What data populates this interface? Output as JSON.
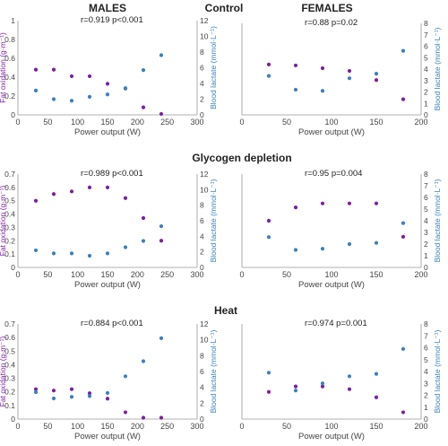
{
  "headings": {
    "males": "MALES",
    "females": "FEMALES",
    "control": "Control",
    "glycogen": "Glycogen depletion",
    "heat": "Heat"
  },
  "colors": {
    "fat": "#7b1fa2",
    "lactate": "#3a7fc1"
  },
  "chart_data": [
    {
      "id": "control-males",
      "type": "scatter",
      "annotation": "r=0.919 p<0.001",
      "xlabel": "Power output (W)",
      "ylabel_left": "Fat oxidation (g·m⁻¹)",
      "ylabel_right": "Blood lactate (mmol·L⁻¹)",
      "xlim": [
        0,
        300
      ],
      "xticks": [
        0,
        50,
        100,
        150,
        200,
        250,
        300
      ],
      "ylim_left": [
        0,
        1.0
      ],
      "yticks_left": [
        0,
        0.2,
        0.4,
        0.6,
        0.8,
        1.0
      ],
      "ylim_right": [
        0,
        12
      ],
      "yticks_right": [
        0,
        2,
        4,
        6,
        8,
        10,
        12
      ],
      "series": [
        {
          "axis": "left",
          "color": "fat",
          "x": [
            30,
            60,
            90,
            120,
            150,
            180,
            210,
            240
          ],
          "y": [
            0.48,
            0.48,
            0.41,
            0.41,
            0.33,
            0.28,
            0.08,
            0.01
          ]
        },
        {
          "axis": "right",
          "color": "lactate",
          "x": [
            30,
            60,
            90,
            120,
            150,
            180,
            210,
            240
          ],
          "y": [
            3.1,
            2.0,
            1.8,
            2.3,
            2.6,
            3.4,
            5.7,
            7.6
          ]
        }
      ]
    },
    {
      "id": "control-females",
      "type": "scatter",
      "annotation": "r=0.88 p=0.02",
      "xlabel": "Power output (W)",
      "ylabel_left": "",
      "ylabel_right": "Blood lactate (mmol·L⁻¹)",
      "xlim": [
        0,
        200
      ],
      "xticks": [
        0,
        50,
        100,
        150,
        200
      ],
      "ylim_left": [
        0,
        1.0
      ],
      "yticks_left": [],
      "ylim_right": [
        0,
        8
      ],
      "yticks_right": [
        0,
        1,
        2,
        3,
        4,
        5,
        6,
        7,
        8
      ],
      "series": [
        {
          "axis": "left",
          "color": "fat",
          "x": [
            30,
            60,
            90,
            120,
            150,
            180
          ],
          "y": [
            0.55,
            0.54,
            0.51,
            0.48,
            0.38,
            0.17
          ]
        },
        {
          "axis": "right",
          "color": "lactate",
          "x": [
            30,
            60,
            90,
            120,
            150,
            180
          ],
          "y": [
            3.4,
            2.2,
            2.1,
            3.2,
            3.6,
            5.6
          ]
        }
      ]
    },
    {
      "id": "glycogen-males",
      "type": "scatter",
      "annotation": "r=0.989 p<0.001",
      "xlabel": "Power output (W)",
      "ylabel_left": "Fat oxidation (g·m⁻¹)",
      "ylabel_right": "Blood lactate (mmol·L⁻¹)",
      "xlim": [
        0,
        300
      ],
      "xticks": [
        0,
        50,
        100,
        150,
        200,
        250,
        300
      ],
      "ylim_left": [
        0,
        0.7
      ],
      "yticks_left": [
        0,
        0.1,
        0.2,
        0.3,
        0.4,
        0.5,
        0.6,
        0.7
      ],
      "ylim_right": [
        0,
        12
      ],
      "yticks_right": [
        0,
        2,
        4,
        6,
        8,
        10,
        12
      ],
      "series": [
        {
          "axis": "left",
          "color": "fat",
          "x": [
            30,
            60,
            90,
            120,
            150,
            180,
            210,
            240
          ],
          "y": [
            0.5,
            0.55,
            0.57,
            0.6,
            0.6,
            0.52,
            0.37,
            0.2
          ]
        },
        {
          "axis": "right",
          "color": "lactate",
          "x": [
            30,
            60,
            90,
            120,
            150,
            180,
            210,
            240
          ],
          "y": [
            2.2,
            1.8,
            1.8,
            1.5,
            1.8,
            2.6,
            3.4,
            5.3
          ]
        }
      ]
    },
    {
      "id": "glycogen-females",
      "type": "scatter",
      "annotation": "r=0.95 p=0.004",
      "xlabel": "Power output (W)",
      "ylabel_left": "",
      "ylabel_right": "Blood lactate (mmol·L⁻¹)",
      "xlim": [
        0,
        200
      ],
      "xticks": [
        0,
        50,
        100,
        150,
        200
      ],
      "ylim_left": [
        0,
        0.7
      ],
      "yticks_left": [],
      "ylim_right": [
        0,
        8
      ],
      "yticks_right": [
        0,
        1,
        2,
        3,
        4,
        5,
        6,
        7,
        8
      ],
      "series": [
        {
          "axis": "left",
          "color": "fat",
          "x": [
            30,
            60,
            90,
            120,
            150,
            180
          ],
          "y": [
            0.35,
            0.45,
            0.48,
            0.48,
            0.48,
            0.23
          ]
        },
        {
          "axis": "right",
          "color": "lactate",
          "x": [
            30,
            60,
            90,
            120,
            150,
            180
          ],
          "y": [
            2.6,
            1.5,
            1.6,
            2.0,
            2.1,
            3.8
          ]
        }
      ]
    },
    {
      "id": "heat-males",
      "type": "scatter",
      "annotation": "r=0.884 p<0.001",
      "xlabel": "Power output (W)",
      "ylabel_left": "Fat oxidation (g·m⁻¹)",
      "ylabel_right": "Blood lactate (mmol·L⁻¹)",
      "xlim": [
        0,
        300
      ],
      "xticks": [
        0,
        50,
        100,
        150,
        200,
        250,
        300
      ],
      "ylim_left": [
        0,
        0.7
      ],
      "yticks_left": [
        0,
        0.1,
        0.2,
        0.3,
        0.4,
        0.5,
        0.6,
        0.7
      ],
      "ylim_right": [
        0,
        12
      ],
      "yticks_right": [
        0,
        2,
        4,
        6,
        8,
        10,
        12
      ],
      "series": [
        {
          "axis": "left",
          "color": "fat",
          "x": [
            30,
            60,
            90,
            120,
            150,
            180,
            210,
            240
          ],
          "y": [
            0.22,
            0.21,
            0.22,
            0.19,
            0.15,
            0.05,
            0.01,
            0.01
          ]
        },
        {
          "axis": "right",
          "color": "lactate",
          "x": [
            30,
            60,
            90,
            120,
            150,
            180,
            210,
            240
          ],
          "y": [
            3.4,
            2.6,
            2.8,
            2.9,
            3.3,
            5.4,
            7.3,
            10.2
          ]
        }
      ]
    },
    {
      "id": "heat-females",
      "type": "scatter",
      "annotation": "r=0.974 p=0.001",
      "xlabel": "Power output (W)",
      "ylabel_left": "",
      "ylabel_right": "Blood lactate (mmol·L⁻¹)",
      "xlim": [
        0,
        200
      ],
      "xticks": [
        0,
        50,
        100,
        150,
        200
      ],
      "ylim_left": [
        0,
        0.7
      ],
      "yticks_left": [],
      "ylim_right": [
        0,
        8
      ],
      "yticks_right": [
        0,
        1,
        2,
        3,
        4,
        5,
        6,
        7,
        8
      ],
      "series": [
        {
          "axis": "left",
          "color": "fat",
          "x": [
            30,
            60,
            90,
            120,
            150,
            180
          ],
          "y": [
            0.2,
            0.24,
            0.24,
            0.22,
            0.16,
            0.05
          ]
        },
        {
          "axis": "right",
          "color": "lactate",
          "x": [
            30,
            60,
            90,
            120,
            150,
            180
          ],
          "y": [
            3.9,
            2.4,
            3.0,
            3.6,
            3.8,
            5.9
          ]
        }
      ]
    }
  ]
}
